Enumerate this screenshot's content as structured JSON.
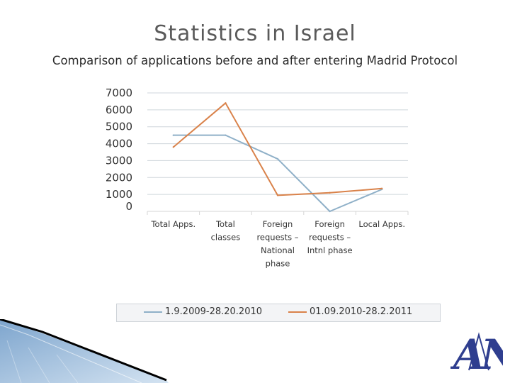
{
  "slide": {
    "title": "Statistics in Israel",
    "subtitle": "Comparison of applications before and after entering Madrid Protocol"
  },
  "chart_data": {
    "type": "line",
    "title": "",
    "xlabel": "",
    "ylabel": "",
    "ylim": [
      0,
      7000
    ],
    "yticks": [
      0,
      1000,
      2000,
      3000,
      4000,
      5000,
      6000,
      7000
    ],
    "grid": true,
    "legend_position": "bottom",
    "categories": [
      [
        "Total Apps."
      ],
      [
        "Total",
        "classes"
      ],
      [
        "Foreign",
        "requests –",
        "National",
        "phase"
      ],
      [
        "Foreign",
        "requests –",
        "Intnl phase"
      ],
      [
        "Local Apps."
      ]
    ],
    "series": [
      {
        "name": "1.9.2009-28.20.2010",
        "color": "#8fb0c8",
        "values": [
          4500,
          4500,
          3100,
          0,
          1300
        ]
      },
      {
        "name": "01.09.2010-28.2.2011",
        "color": "#d9824a",
        "values": [
          3800,
          6400,
          950,
          1100,
          1350
        ]
      }
    ]
  },
  "legend": {
    "items": [
      {
        "label": "1.9.2009-28.20.2010",
        "color": "#8fb0c8"
      },
      {
        "label": "01.09.2010-28.2.2011",
        "color": "#d9824a"
      }
    ]
  },
  "logo": {
    "text": "AN",
    "color": "#2f3e8f"
  },
  "colors": {
    "grid": "#cfd6dc",
    "deco_blue": "#8fb2d6"
  }
}
